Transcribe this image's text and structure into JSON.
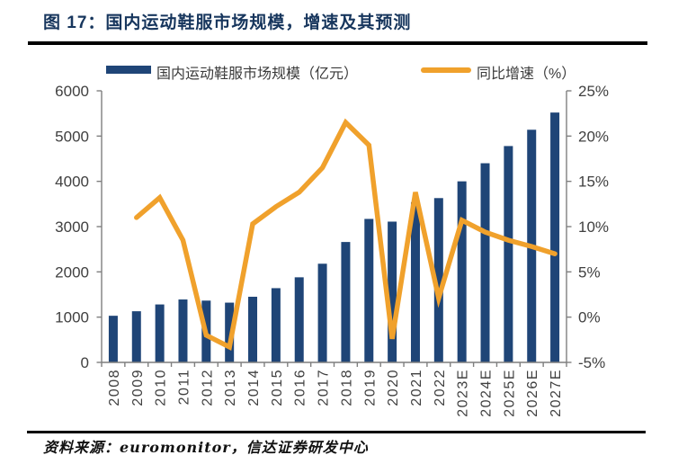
{
  "title": "图 17：国内运动鞋服市场规模，增速及其预测",
  "source": "资料来源：euromonitor，信达证券研发中心",
  "colors": {
    "bar": "#1F4577",
    "line": "#F0A12C",
    "title": "#17365D",
    "axis": "#7F7F7F",
    "tick_label": "#404040",
    "rule": "#000000"
  },
  "chart_data": {
    "type": "bar+line",
    "title": "",
    "categories": [
      "2008",
      "2009",
      "2010",
      "2011",
      "2012",
      "2013",
      "2014",
      "2015",
      "2016",
      "2017",
      "2018",
      "2019",
      "2020",
      "2021",
      "2022",
      "2023E",
      "2024E",
      "2025E",
      "2026E",
      "2027E"
    ],
    "series": [
      {
        "name": "国内运动鞋服市场规模（亿元）",
        "type": "bar",
        "axis": "left",
        "color": "#1F4577",
        "values": [
          1030,
          1130,
          1280,
          1390,
          1365,
          1320,
          1450,
          1640,
          1880,
          2180,
          2660,
          3170,
          3110,
          3540,
          3630,
          4000,
          4400,
          4780,
          5140,
          5520
        ]
      },
      {
        "name": "同比增速（%）",
        "type": "line",
        "axis": "right",
        "color": "#F0A12C",
        "values": [
          null,
          11.0,
          13.2,
          8.5,
          -2.0,
          -3.3,
          10.3,
          12.2,
          13.8,
          16.5,
          21.5,
          19.0,
          -2.4,
          13.8,
          2.1,
          10.7,
          9.4,
          8.5,
          7.8,
          7.0
        ]
      }
    ],
    "left_axis": {
      "min": 0,
      "max": 6000,
      "step": 1000,
      "tick_labels": [
        "6000",
        "5000",
        "4000",
        "3000",
        "2000",
        "1000",
        "0"
      ]
    },
    "right_axis": {
      "min": -5,
      "max": 25,
      "step": 5,
      "tick_labels": [
        "25%",
        "20%",
        "15%",
        "10%",
        "5%",
        "0%",
        "-5%"
      ]
    },
    "legend_position": "top",
    "grid": false
  }
}
